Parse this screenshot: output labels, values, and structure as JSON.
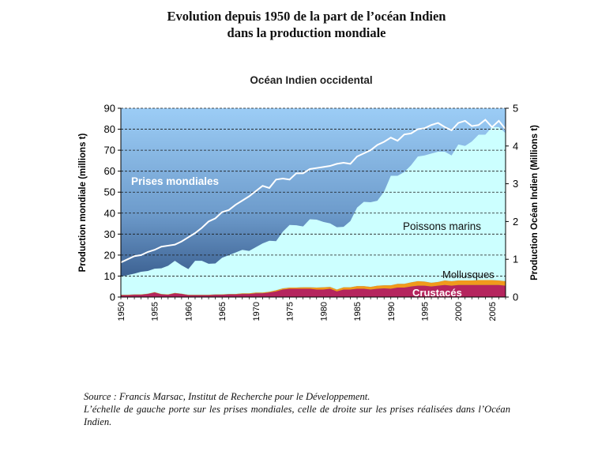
{
  "page": {
    "title_line1": "Evolution depuis 1950 de la part de l’océan Indien",
    "title_line2": "dans la production mondiale",
    "source": "Source : Francis Marsac, Institut de Recherche pour le Développement.",
    "note": "L’échelle de gauche porte sur les prises mondiales, celle de droite sur les prises réalisées dans l’Océan Indien."
  },
  "chart_data": {
    "type": "area",
    "title": "Océan Indien occidental",
    "ylabel": "Production mondiale (millions t)",
    "y2label": "Production Océan Indien (Millions t)",
    "ylim": [
      0,
      90
    ],
    "y2lim": [
      0,
      5
    ],
    "xlim": [
      1950,
      2007
    ],
    "yticks": [
      0,
      10,
      20,
      30,
      40,
      50,
      60,
      70,
      80,
      90
    ],
    "y2ticks": [
      0,
      1,
      2,
      3,
      4,
      5
    ],
    "xticks": [
      1950,
      1955,
      1960,
      1965,
      1970,
      1975,
      1980,
      1985,
      1990,
      1995,
      2000,
      2005
    ],
    "grid": "horizontal dashed",
    "x": [
      1950,
      1951,
      1952,
      1953,
      1954,
      1955,
      1956,
      1957,
      1958,
      1959,
      1960,
      1961,
      1962,
      1963,
      1964,
      1965,
      1966,
      1967,
      1968,
      1969,
      1970,
      1971,
      1972,
      1973,
      1974,
      1975,
      1976,
      1977,
      1978,
      1979,
      1980,
      1981,
      1982,
      1983,
      1984,
      1985,
      1986,
      1987,
      1988,
      1989,
      1990,
      1991,
      1992,
      1993,
      1994,
      1995,
      1996,
      1997,
      1998,
      1999,
      2000,
      2001,
      2002,
      2003,
      2004,
      2005,
      2006,
      2007
    ],
    "series": [
      {
        "name": "Prises mondiales",
        "axis": "left",
        "kind": "line",
        "color": "#ffffff",
        "values": [
          16.5,
          18,
          19.5,
          20,
          21.5,
          22.5,
          24,
          24.5,
          25,
          26.5,
          28.5,
          30.5,
          33,
          36,
          37.5,
          40.5,
          41.5,
          44,
          46,
          48,
          50.5,
          53,
          52,
          56,
          56.5,
          56,
          59,
          59,
          61,
          61.5,
          62,
          62.5,
          63.5,
          64,
          63.5,
          67,
          68.5,
          70,
          72.5,
          74,
          76,
          74.5,
          77.5,
          78,
          80,
          80.5,
          82,
          83,
          81,
          79.5,
          83,
          84,
          81.5,
          82,
          84.5,
          81,
          84,
          80
        ]
      },
      {
        "name": "Crustacés",
        "axis": "right",
        "kind": "stacked-area",
        "color": "#b5255e",
        "values": [
          0.05,
          0.05,
          0.06,
          0.06,
          0.08,
          0.12,
          0.07,
          0.06,
          0.1,
          0.08,
          0.05,
          0.05,
          0.05,
          0.05,
          0.06,
          0.06,
          0.07,
          0.07,
          0.08,
          0.08,
          0.1,
          0.1,
          0.12,
          0.15,
          0.2,
          0.22,
          0.22,
          0.22,
          0.22,
          0.2,
          0.2,
          0.22,
          0.15,
          0.2,
          0.2,
          0.22,
          0.22,
          0.2,
          0.22,
          0.23,
          0.22,
          0.25,
          0.25,
          0.28,
          0.3,
          0.3,
          0.28,
          0.3,
          0.32,
          0.3,
          0.32,
          0.32,
          0.32,
          0.32,
          0.32,
          0.32,
          0.32,
          0.3
        ]
      },
      {
        "name": "Mollusques",
        "axis": "right",
        "kind": "stacked-area",
        "color": "#f19a1c",
        "values": [
          0.01,
          0.01,
          0.01,
          0.01,
          0.01,
          0.01,
          0.01,
          0.01,
          0.01,
          0.01,
          0.01,
          0.01,
          0.01,
          0.01,
          0.01,
          0.01,
          0.01,
          0.01,
          0.02,
          0.02,
          0.02,
          0.02,
          0.02,
          0.03,
          0.03,
          0.03,
          0.03,
          0.04,
          0.04,
          0.05,
          0.06,
          0.05,
          0.05,
          0.06,
          0.06,
          0.07,
          0.07,
          0.07,
          0.08,
          0.08,
          0.09,
          0.1,
          0.1,
          0.11,
          0.12,
          0.11,
          0.1,
          0.1,
          0.12,
          0.12,
          0.12,
          0.12,
          0.12,
          0.13,
          0.13,
          0.13,
          0.12,
          0.12
        ]
      },
      {
        "name": "Poissons marins",
        "axis": "right",
        "kind": "stacked-area",
        "color": "#ccffff",
        "values": [
          0.48,
          0.52,
          0.55,
          0.6,
          0.6,
          0.62,
          0.68,
          0.76,
          0.85,
          0.75,
          0.68,
          0.9,
          0.9,
          0.82,
          0.82,
          0.97,
          1.03,
          1.1,
          1.15,
          1.12,
          1.2,
          1.3,
          1.35,
          1.3,
          1.5,
          1.66,
          1.65,
          1.61,
          1.8,
          1.8,
          1.73,
          1.68,
          1.65,
          1.6,
          1.75,
          2.08,
          2.23,
          2.24,
          2.25,
          2.48,
          2.9,
          2.86,
          2.96,
          3.1,
          3.3,
          3.34,
          3.42,
          3.45,
          3.41,
          3.33,
          3.6,
          3.56,
          3.68,
          3.85,
          3.85,
          4.05,
          4.06,
          3.92
        ]
      }
    ]
  }
}
